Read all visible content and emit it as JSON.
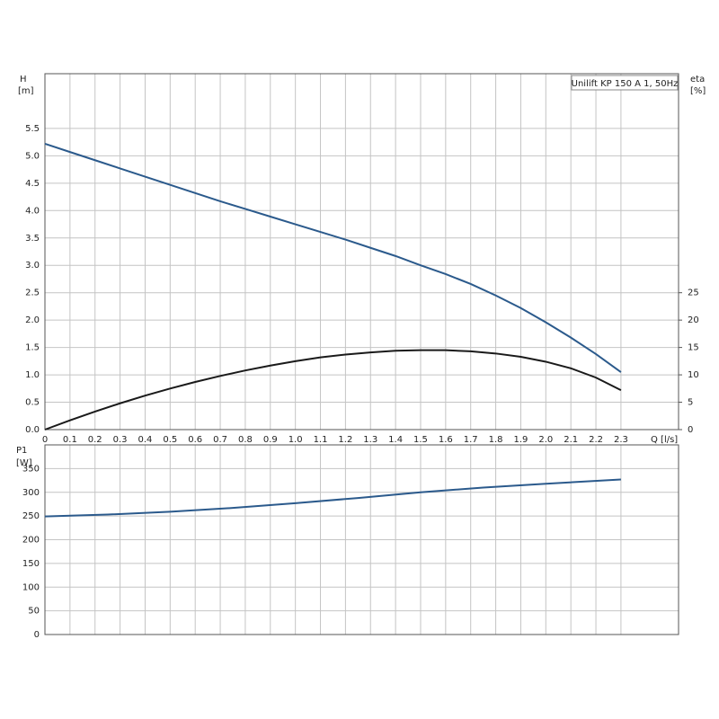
{
  "chart_data": [
    {
      "type": "line",
      "legend_label": "Unilift KP 150 A 1, 50Hz",
      "y_label": "H",
      "y_unit": "[m]",
      "y2_label": "eta",
      "y2_unit": "[%]",
      "x_label": "Q [l/s]",
      "x": [
        0,
        0.1,
        0.2,
        0.3,
        0.4,
        0.5,
        0.6,
        0.7,
        0.8,
        0.9,
        1.0,
        1.1,
        1.2,
        1.3,
        1.4,
        1.5,
        1.6,
        1.7,
        1.8,
        1.9,
        2.0,
        2.1,
        2.2,
        2.3
      ],
      "series": [
        {
          "name": "H",
          "color": "#2b5a8c",
          "values": [
            5.22,
            5.07,
            4.92,
            4.77,
            4.62,
            4.47,
            4.32,
            4.17,
            4.03,
            3.89,
            3.75,
            3.61,
            3.47,
            3.32,
            3.17,
            3.0,
            2.84,
            2.66,
            2.45,
            2.22,
            1.96,
            1.68,
            1.38,
            1.05
          ]
        },
        {
          "name": "eta",
          "color": "#1a1a1a",
          "axis": "y2",
          "values": [
            0,
            1.7,
            3.3,
            4.8,
            6.2,
            7.5,
            8.7,
            9.8,
            10.8,
            11.7,
            12.5,
            13.2,
            13.7,
            14.1,
            14.4,
            14.5,
            14.5,
            14.3,
            13.9,
            13.3,
            12.4,
            11.2,
            9.5,
            7.2
          ]
        }
      ],
      "xlim": [
        0,
        2.53
      ],
      "xticks": [
        0,
        0.1,
        0.2,
        0.3,
        0.4,
        0.5,
        0.6,
        0.7,
        0.8,
        0.9,
        {
          "value": 1,
          "label": "1.0"
        },
        1.1,
        1.2,
        1.3,
        1.4,
        1.5,
        1.6,
        1.7,
        1.8,
        1.9,
        {
          "value": 2,
          "label": "2.0"
        },
        2.1,
        2.2,
        2.3
      ],
      "ylim": [
        0,
        6.5
      ],
      "yticks": [
        {
          "value": 0,
          "label": "0.0"
        },
        0.5,
        {
          "value": 1,
          "label": "1.0"
        },
        1.5,
        {
          "value": 2,
          "label": "2.0"
        },
        2.5,
        {
          "value": 3,
          "label": "3.0"
        },
        3.5,
        {
          "value": 4,
          "label": "4.0"
        },
        4.5,
        {
          "value": 5,
          "label": "5.0"
        },
        5.5
      ],
      "y2lim": [
        0,
        65
      ],
      "y2ticks": [
        0,
        5,
        10,
        15,
        20,
        25
      ],
      "grid": true
    },
    {
      "type": "line",
      "y_label": "P1",
      "y_unit": "[W]",
      "x": [
        0,
        0.25,
        0.5,
        0.75,
        1.0,
        1.25,
        1.5,
        1.75,
        2.0,
        2.3
      ],
      "series": [
        {
          "name": "P1",
          "color": "#2b5a8c",
          "values": [
            249,
            253,
            259,
            267,
            277,
            288,
            300,
            310,
            318,
            327
          ]
        }
      ],
      "xlim": [
        0,
        2.53
      ],
      "ylim": [
        0,
        400
      ],
      "yticks": [
        0,
        50,
        100,
        150,
        200,
        250,
        300,
        350
      ],
      "grid": true
    }
  ]
}
